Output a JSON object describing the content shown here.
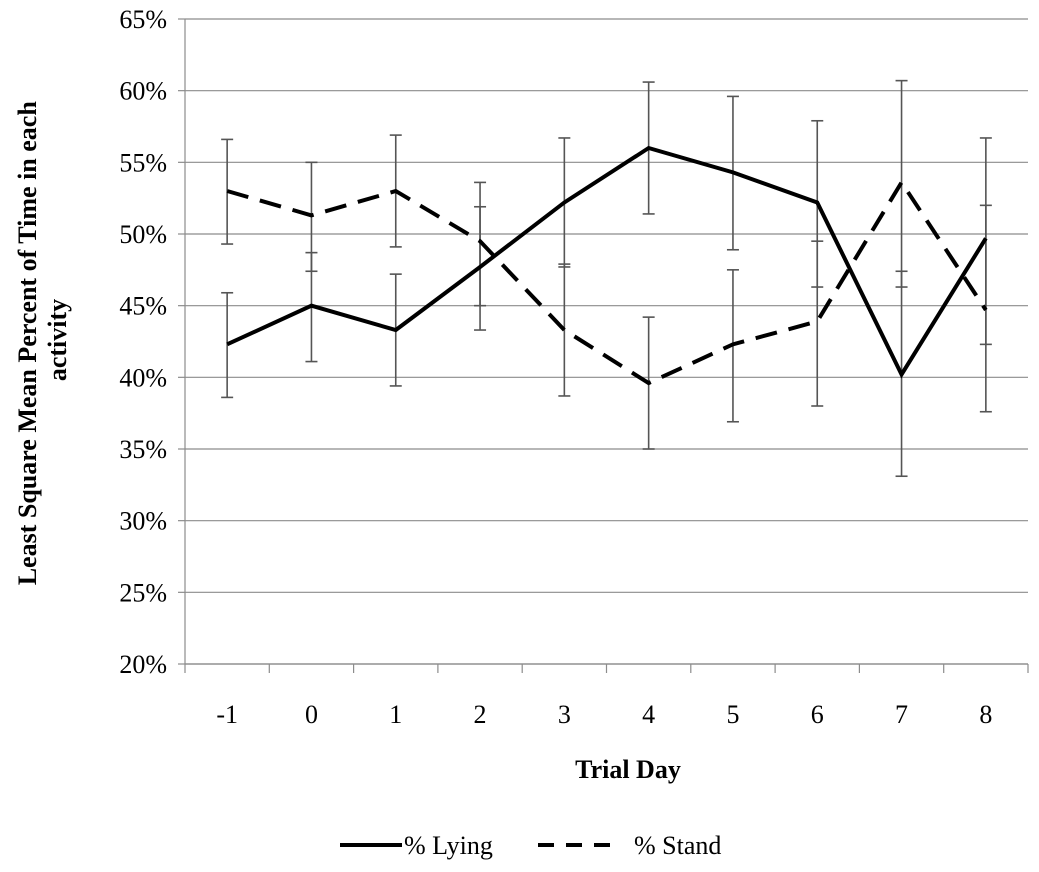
{
  "chart_data": {
    "type": "line",
    "title": "",
    "xlabel": "Trial Day",
    "ylabel": "Least Square Mean Percent of Time in each activity",
    "categories": [
      "-1",
      "0",
      "1",
      "2",
      "3",
      "4",
      "5",
      "6",
      "7",
      "8"
    ],
    "ylim": [
      20,
      65
    ],
    "yticks": [
      "20%",
      "25%",
      "30%",
      "35%",
      "40%",
      "45%",
      "50%",
      "55%",
      "60%",
      "65%"
    ],
    "grid": "horizontal",
    "legend_position": "bottom",
    "series": [
      {
        "name": "% Lying",
        "style": "solid",
        "values": [
          42.3,
          45.0,
          43.3,
          47.7,
          52.2,
          56.0,
          54.3,
          52.2,
          40.2,
          49.7
        ],
        "error_low": [
          38.6,
          41.1,
          39.4,
          43.3,
          47.7,
          51.4,
          48.9,
          46.3,
          33.1,
          42.3
        ],
        "error_high": [
          45.9,
          48.7,
          47.2,
          51.9,
          56.7,
          60.6,
          59.6,
          57.9,
          47.4,
          56.7
        ]
      },
      {
        "name": "% Stand",
        "style": "dashed",
        "values": [
          53.0,
          51.3,
          53.0,
          49.5,
          43.3,
          39.6,
          42.3,
          43.9,
          53.6,
          44.7
        ],
        "error_low": [
          49.3,
          47.4,
          49.1,
          45.0,
          38.7,
          35.0,
          36.9,
          38.0,
          46.3,
          37.6
        ],
        "error_high": [
          56.6,
          55.0,
          56.9,
          53.6,
          47.9,
          44.2,
          47.5,
          49.5,
          60.7,
          52.0
        ]
      }
    ],
    "colors": {
      "line": "#000000",
      "grid": "#8c8c8c",
      "errorbar": "#555555"
    }
  }
}
